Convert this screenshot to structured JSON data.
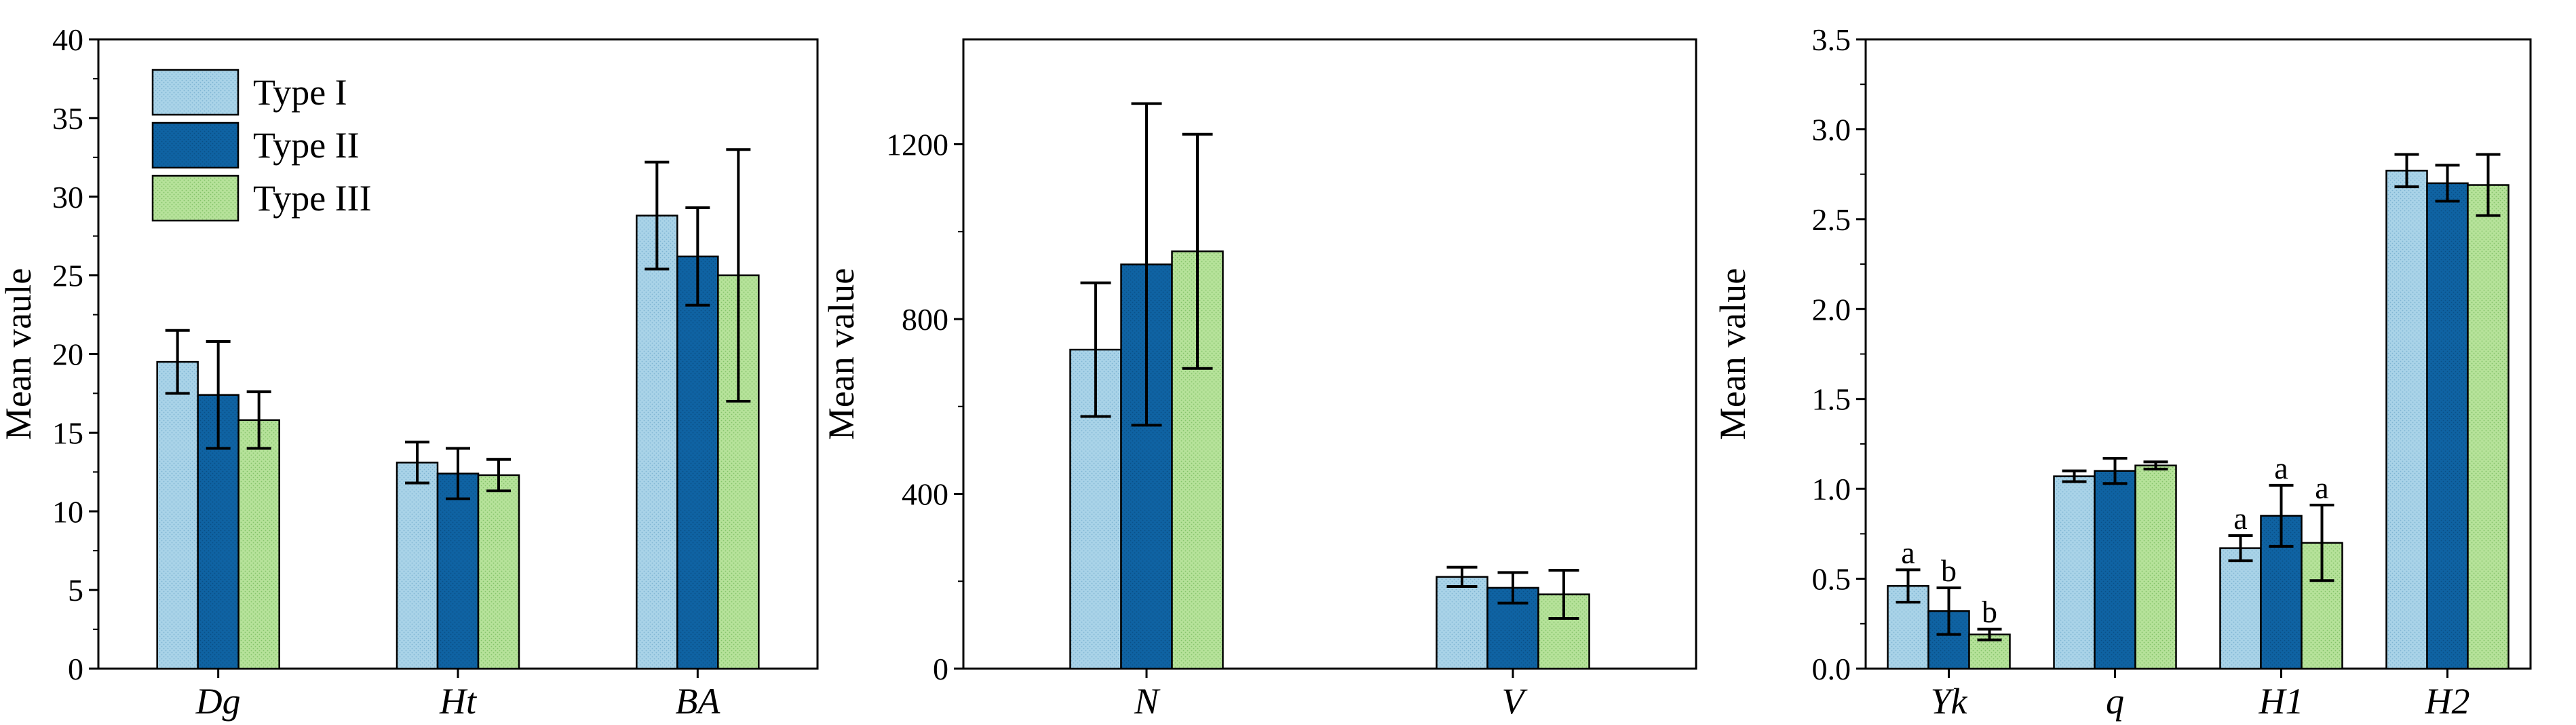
{
  "colors": {
    "Type I": "#a9d3e8",
    "Type II": "#0f63a3",
    "Type III": "#b6e29a"
  },
  "legend_position": "top-left",
  "chart_data": [
    {
      "type": "bar",
      "categories": [
        "Dg",
        "Ht",
        "BA"
      ],
      "ylabel": "Mean vaule",
      "ylim": [
        0,
        40
      ],
      "yticks": [
        "0",
        "5",
        "10",
        "15",
        "20",
        "25",
        "30",
        "35",
        "40"
      ],
      "legend": [
        "Type I",
        "Type II",
        "Type III"
      ],
      "series": [
        {
          "name": "Type I",
          "values": [
            19.5,
            13.1,
            28.8
          ],
          "errors": [
            2.0,
            1.3,
            3.4
          ]
        },
        {
          "name": "Type II",
          "values": [
            17.4,
            12.4,
            26.2
          ],
          "errors": [
            3.4,
            1.6,
            3.1
          ]
        },
        {
          "name": "Type III",
          "values": [
            15.8,
            12.3,
            25.0
          ],
          "errors": [
            1.8,
            1.0,
            8.0
          ]
        }
      ]
    },
    {
      "type": "bar",
      "categories": [
        "N",
        "V"
      ],
      "ylabel": "Mean value",
      "ylim": [
        0,
        1440
      ],
      "yticks": [
        "0",
        "400",
        "800",
        "1200"
      ],
      "series": [
        {
          "name": "Type I",
          "values": [
            730,
            210
          ],
          "errors": [
            153,
            22
          ]
        },
        {
          "name": "Type II",
          "values": [
            925,
            185
          ],
          "errors": [
            368,
            35
          ]
        },
        {
          "name": "Type III",
          "values": [
            955,
            170
          ],
          "errors": [
            268,
            55
          ]
        }
      ]
    },
    {
      "type": "bar",
      "categories": [
        "Yk",
        "q",
        "H1",
        "H2"
      ],
      "ylabel": "Mean value",
      "ylim": [
        0,
        3.5
      ],
      "yticks": [
        "0.0",
        "0.5",
        "1.0",
        "1.5",
        "2.0",
        "2.5",
        "3.0",
        "3.5"
      ],
      "series": [
        {
          "name": "Type I",
          "values": [
            0.46,
            1.07,
            0.67,
            2.77
          ],
          "errors": [
            0.09,
            0.03,
            0.07,
            0.09
          ],
          "labels": [
            "a",
            "",
            "a",
            ""
          ]
        },
        {
          "name": "Type II",
          "values": [
            0.32,
            1.1,
            0.85,
            2.7
          ],
          "errors": [
            0.13,
            0.07,
            0.17,
            0.1
          ],
          "labels": [
            "b",
            "",
            "a",
            ""
          ]
        },
        {
          "name": "Type III",
          "values": [
            0.19,
            1.13,
            0.7,
            2.69
          ],
          "errors": [
            0.03,
            0.02,
            0.21,
            0.17
          ],
          "labels": [
            "b",
            "",
            "a",
            ""
          ]
        }
      ]
    }
  ]
}
